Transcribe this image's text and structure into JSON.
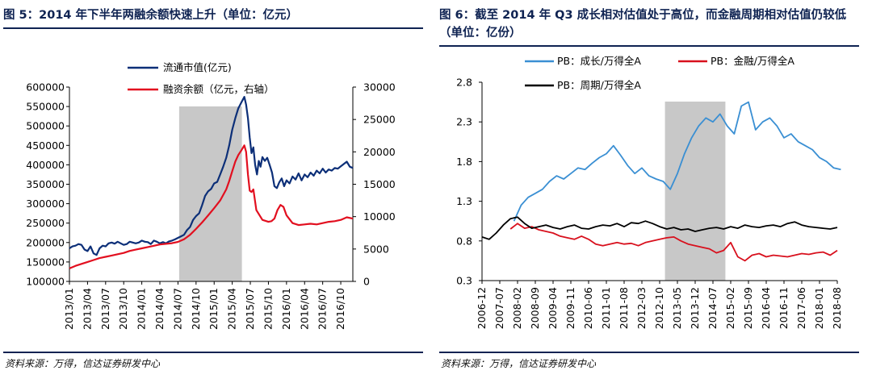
{
  "chart_data": [
    {
      "type": "line",
      "title": "图 5：2014 年下半年两融余额快速上升（单位：亿元）",
      "source": "资料来源：万得，信达证券研发中心",
      "x_ticks": [
        "2013/01",
        "2013/04",
        "2013/07",
        "2013/10",
        "2014/01",
        "2014/04",
        "2014/07",
        "2014/10",
        "2015/01",
        "2015/04",
        "2015/07",
        "2015/10",
        "2016/01",
        "2016/04",
        "2016/07",
        "2016/10"
      ],
      "y_left": {
        "ticks": [
          100000,
          150000,
          200000,
          250000,
          300000,
          350000,
          400000,
          450000,
          500000,
          550000,
          600000
        ],
        "labels": [
          "100000",
          "150000",
          "200000",
          "250000",
          "300000",
          "350000",
          "400000",
          "450000",
          "500000",
          "550000",
          "600000"
        ],
        "lim": [
          100000,
          600000
        ]
      },
      "y_right": {
        "ticks": [
          0,
          5000,
          10000,
          15000,
          20000,
          25000,
          30000
        ],
        "labels": [
          "0",
          "5000",
          "10000",
          "15000",
          "20000",
          "25000",
          "30000"
        ],
        "lim": [
          0,
          30000
        ]
      },
      "shade": {
        "from": 18.2,
        "to": 28.6
      },
      "series": [
        {
          "name": "流通市值(亿元)",
          "axis": "left",
          "color": "#0c2f78",
          "x": [
            0,
            0.5,
            1,
            1.5,
            2,
            2.5,
            3,
            3.5,
            4,
            4.5,
            5,
            5.5,
            6,
            6.5,
            7,
            7.5,
            8,
            8.5,
            9,
            9.5,
            10,
            10.5,
            11,
            11.5,
            12,
            12.5,
            13,
            13.5,
            14,
            14.5,
            15,
            15.5,
            16,
            16.5,
            17,
            17.5,
            18,
            18.5,
            19,
            19.5,
            20,
            20.5,
            21,
            21.5,
            22,
            22.5,
            23,
            23.5,
            24,
            24.5,
            25,
            25.5,
            26,
            26.5,
            27,
            27.5,
            28,
            28.5,
            29,
            29.3,
            29.6,
            29.9,
            30.2,
            30.5,
            30.8,
            31.1,
            31.4,
            31.7,
            32,
            32.4,
            32.8,
            33.2,
            33.6,
            34,
            34.4,
            34.8,
            35.2,
            35.6,
            36,
            36.5,
            37,
            37.5,
            38,
            38.5,
            39,
            39.5,
            40,
            40.5,
            41,
            41.5,
            42,
            42.5,
            43,
            43.5,
            44,
            44.5,
            45,
            45.5,
            46,
            46.5,
            47
          ],
          "values": [
            185000,
            190000,
            192000,
            196000,
            194000,
            182000,
            178000,
            190000,
            172000,
            168000,
            185000,
            192000,
            190000,
            198000,
            200000,
            197000,
            202000,
            198000,
            194000,
            196000,
            202000,
            200000,
            198000,
            200000,
            205000,
            202000,
            201000,
            196000,
            205000,
            202000,
            198000,
            201000,
            198000,
            203000,
            205000,
            208000,
            212000,
            216000,
            220000,
            232000,
            240000,
            258000,
            268000,
            275000,
            296000,
            320000,
            332000,
            338000,
            352000,
            356000,
            375000,
            395000,
            418000,
            450000,
            490000,
            520000,
            545000,
            560000,
            575000,
            555000,
            520000,
            470000,
            430000,
            445000,
            400000,
            375000,
            410000,
            395000,
            420000,
            410000,
            418000,
            400000,
            380000,
            345000,
            340000,
            355000,
            365000,
            345000,
            360000,
            352000,
            370000,
            362000,
            378000,
            360000,
            375000,
            368000,
            380000,
            372000,
            385000,
            378000,
            390000,
            380000,
            388000,
            385000,
            392000,
            390000,
            396000,
            402000,
            408000,
            395000,
            392000
          ]
        },
        {
          "name": "融资余额（亿元，右轴）",
          "axis": "right",
          "color": "#e20f1f",
          "x": [
            0,
            1,
            2,
            3,
            4,
            5,
            6,
            7,
            8,
            9,
            10,
            11,
            12,
            13,
            14,
            15,
            16,
            17,
            18,
            19,
            20,
            21,
            22,
            23,
            24,
            25,
            26,
            26.5,
            27,
            27.5,
            28,
            28.5,
            29,
            29.3,
            29.6,
            29.9,
            30.2,
            30.5,
            31,
            32,
            33,
            33.5,
            34,
            34.5,
            35,
            35.5,
            36,
            37,
            38,
            39,
            40,
            41,
            42,
            43,
            44,
            45,
            46,
            47
          ],
          "values": [
            2000,
            2400,
            2700,
            3000,
            3300,
            3600,
            3800,
            4000,
            4200,
            4400,
            4700,
            4900,
            5100,
            5300,
            5500,
            5700,
            5800,
            5900,
            6100,
            6500,
            7200,
            8100,
            9100,
            10200,
            11300,
            12500,
            14200,
            15500,
            17000,
            18500,
            19500,
            20200,
            21000,
            20000,
            16500,
            14000,
            13800,
            14200,
            11000,
            9500,
            9200,
            9300,
            9700,
            11000,
            11800,
            11500,
            10200,
            9000,
            8700,
            8800,
            8900,
            8800,
            9000,
            9200,
            9300,
            9500,
            9900,
            9700
          ]
        }
      ],
      "legend": [
        "流通市值(亿元)",
        "融资余额（亿元，右轴）"
      ]
    },
    {
      "type": "line",
      "title": "图 6：截至 2014 年 Q3 成长相对估值处于高位，而金融周期相对估值仍较低（单位：亿份）",
      "source": "资料来源：万得，信达证券研发中心",
      "x_ticks": [
        "2006-12",
        "2007-07",
        "2008-02",
        "2008-09",
        "2009-04",
        "2009-11",
        "2010-06",
        "2011-01",
        "2011-08",
        "2012-03",
        "2012-10",
        "2013-05",
        "2013-12",
        "2014-07",
        "2015-02",
        "2015-09",
        "2016-04",
        "2016-11",
        "2017-06",
        "2018-01",
        "2018-08"
      ],
      "y": {
        "ticks": [
          0.3,
          0.8,
          1.3,
          1.8,
          2.3,
          2.8
        ],
        "labels": [
          "0.3",
          "0.8",
          "1.3",
          "1.8",
          "2.3",
          "2.8"
        ],
        "lim": [
          0.3,
          2.8
        ]
      },
      "shade": {
        "from": 10.3,
        "to": 13.7
      },
      "series": [
        {
          "name": "PB：成长/万得全A",
          "color": "#3a8fd3",
          "x": [
            1.8,
            2.2,
            2.6,
            3,
            3.4,
            3.8,
            4.2,
            4.6,
            5,
            5.4,
            5.8,
            6.2,
            6.6,
            7,
            7.4,
            7.8,
            8.2,
            8.6,
            9,
            9.4,
            9.8,
            10.2,
            10.6,
            11,
            11.4,
            11.8,
            12.2,
            12.6,
            13,
            13.4,
            13.8,
            14.2,
            14.6,
            15,
            15.4,
            15.8,
            16.2,
            16.6,
            17,
            17.4,
            17.8,
            18.2,
            18.6,
            19,
            19.4,
            19.8,
            20.2
          ],
          "values": [
            1.05,
            1.25,
            1.35,
            1.4,
            1.45,
            1.55,
            1.62,
            1.58,
            1.65,
            1.72,
            1.7,
            1.78,
            1.85,
            1.9,
            2.0,
            1.88,
            1.75,
            1.65,
            1.72,
            1.62,
            1.58,
            1.55,
            1.45,
            1.65,
            1.9,
            2.1,
            2.25,
            2.35,
            2.3,
            2.4,
            2.25,
            2.15,
            2.5,
            2.55,
            2.2,
            2.3,
            2.35,
            2.25,
            2.1,
            2.15,
            2.05,
            2.0,
            1.95,
            1.85,
            1.8,
            1.72,
            1.7
          ]
        },
        {
          "name": "PB：金融/万得全A",
          "color": "#d8101d",
          "x": [
            1.6,
            2,
            2.4,
            2.8,
            3.2,
            3.6,
            4,
            4.4,
            4.8,
            5.2,
            5.6,
            6,
            6.4,
            6.8,
            7.2,
            7.6,
            8,
            8.4,
            8.8,
            9.2,
            9.6,
            10,
            10.4,
            10.8,
            11.2,
            11.6,
            12,
            12.4,
            12.8,
            13.2,
            13.6,
            14,
            14.4,
            14.8,
            15.2,
            15.6,
            16,
            16.4,
            16.8,
            17.2,
            17.6,
            18,
            18.4,
            18.8,
            19.2,
            19.6,
            20
          ],
          "values": [
            0.95,
            1.02,
            0.96,
            0.98,
            0.94,
            0.92,
            0.9,
            0.86,
            0.84,
            0.82,
            0.86,
            0.82,
            0.76,
            0.74,
            0.76,
            0.78,
            0.76,
            0.77,
            0.74,
            0.78,
            0.8,
            0.82,
            0.84,
            0.85,
            0.8,
            0.76,
            0.74,
            0.72,
            0.7,
            0.65,
            0.68,
            0.78,
            0.6,
            0.55,
            0.62,
            0.64,
            0.6,
            0.62,
            0.61,
            0.6,
            0.62,
            0.64,
            0.63,
            0.65,
            0.66,
            0.62,
            0.68
          ]
        },
        {
          "name": "PB：周期/万得全A",
          "color": "#000000",
          "x": [
            0,
            0.4,
            0.8,
            1.2,
            1.6,
            2,
            2.4,
            2.8,
            3.2,
            3.6,
            4,
            4.4,
            4.8,
            5.2,
            5.6,
            6,
            6.4,
            6.8,
            7.2,
            7.6,
            8,
            8.4,
            8.8,
            9.2,
            9.6,
            10,
            10.4,
            10.8,
            11.2,
            11.6,
            12,
            12.4,
            12.8,
            13.2,
            13.6,
            14,
            14.4,
            14.8,
            15.2,
            15.6,
            16,
            16.4,
            16.8,
            17.2,
            17.6,
            18,
            18.4,
            18.8,
            19.2,
            19.6,
            20
          ],
          "values": [
            0.85,
            0.82,
            0.9,
            1.0,
            1.08,
            1.1,
            1.02,
            0.96,
            0.98,
            1.0,
            0.97,
            0.95,
            0.98,
            1.0,
            0.96,
            0.95,
            0.98,
            1.0,
            0.99,
            1.02,
            0.98,
            1.03,
            1.02,
            1.05,
            1.02,
            0.98,
            0.95,
            0.97,
            0.94,
            0.95,
            0.92,
            0.94,
            0.96,
            0.97,
            0.95,
            0.98,
            0.96,
            1.0,
            0.98,
            0.97,
            0.99,
            1.0,
            0.98,
            1.02,
            1.04,
            1.0,
            0.98,
            0.97,
            0.96,
            0.95,
            0.97
          ]
        }
      ],
      "legend": [
        "PB：成长/万得全A",
        "PB：金融/万得全A",
        "PB：周期/万得全A"
      ]
    }
  ]
}
